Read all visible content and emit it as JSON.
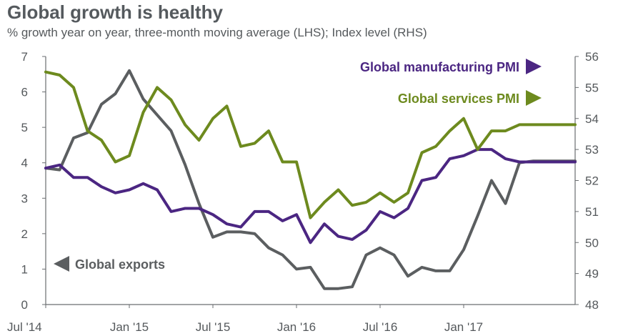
{
  "header": {
    "title": "Global growth is healthy",
    "subtitle": "% growth year on year, three-month moving average (LHS); Index level (RHS)"
  },
  "chart_data": {
    "type": "line",
    "title": "Global growth is healthy",
    "subtitle": "% growth year on year, three-month moving average (LHS); Index level (RHS)",
    "x_tick_labels": [
      "Jul '14",
      "Jan '15",
      "Jul '15",
      "Jan '16",
      "Jul '16",
      "Jan '17"
    ],
    "x_start": "2014-07",
    "x_end": "2017-09",
    "y_left": {
      "min": 0,
      "max": 7,
      "ticks": [
        0,
        1,
        2,
        3,
        4,
        5,
        6,
        7
      ]
    },
    "y_right": {
      "min": 48,
      "max": 56,
      "ticks": [
        48,
        49,
        50,
        51,
        52,
        53,
        54,
        55,
        56
      ]
    },
    "grid": false,
    "series": [
      {
        "name": "Global exports",
        "axis": "left",
        "color": "#5b5e60",
        "x": [
          "2014-07",
          "2014-08",
          "2014-09",
          "2014-10",
          "2014-11",
          "2014-12",
          "2015-01",
          "2015-02",
          "2015-03",
          "2015-04",
          "2015-05",
          "2015-06",
          "2015-07",
          "2015-08",
          "2015-09",
          "2015-10",
          "2015-11",
          "2015-12",
          "2016-01",
          "2016-02",
          "2016-03",
          "2016-04",
          "2016-05",
          "2016-06",
          "2016-07",
          "2016-08",
          "2016-09",
          "2016-10",
          "2016-11",
          "2016-12",
          "2017-01",
          "2017-02",
          "2017-03",
          "2017-04",
          "2017-05",
          "2017-06",
          "2017-07",
          "2017-08",
          "2017-09"
        ],
        "values": [
          3.85,
          3.8,
          4.7,
          4.85,
          5.65,
          5.95,
          6.6,
          5.8,
          5.35,
          4.9,
          3.95,
          2.85,
          1.9,
          2.05,
          2.05,
          2.0,
          1.6,
          1.4,
          1.0,
          1.05,
          0.45,
          0.45,
          0.5,
          1.4,
          1.6,
          1.4,
          0.8,
          1.05,
          0.95,
          0.95,
          1.55,
          2.5,
          3.5,
          2.85,
          4.0,
          4.05,
          4.05,
          4.05,
          4.05
        ]
      },
      {
        "name": "Global manufacturing PMI",
        "axis": "right",
        "color": "#4b2682",
        "x": [
          "2014-07",
          "2014-08",
          "2014-09",
          "2014-10",
          "2014-11",
          "2014-12",
          "2015-01",
          "2015-02",
          "2015-03",
          "2015-04",
          "2015-05",
          "2015-06",
          "2015-07",
          "2015-08",
          "2015-09",
          "2015-10",
          "2015-11",
          "2015-12",
          "2016-01",
          "2016-02",
          "2016-03",
          "2016-04",
          "2016-05",
          "2016-06",
          "2016-07",
          "2016-08",
          "2016-09",
          "2016-10",
          "2016-11",
          "2016-12",
          "2017-01",
          "2017-02",
          "2017-03",
          "2017-04",
          "2017-05",
          "2017-06",
          "2017-07",
          "2017-08",
          "2017-09"
        ],
        "values": [
          52.4,
          52.5,
          52.1,
          52.1,
          51.8,
          51.6,
          51.7,
          51.9,
          51.7,
          51.0,
          51.1,
          51.1,
          50.9,
          50.6,
          50.5,
          51.0,
          51.0,
          50.7,
          50.9,
          50.0,
          50.6,
          50.2,
          50.1,
          50.4,
          51.0,
          50.8,
          51.1,
          52.0,
          52.1,
          52.7,
          52.8,
          53.0,
          53.0,
          52.7,
          52.6,
          52.6,
          52.6,
          52.6,
          52.6
        ]
      },
      {
        "name": "Global services PMI",
        "axis": "right",
        "color": "#6d8a1e",
        "x": [
          "2014-07",
          "2014-08",
          "2014-09",
          "2014-10",
          "2014-11",
          "2014-12",
          "2015-01",
          "2015-02",
          "2015-03",
          "2015-04",
          "2015-05",
          "2015-06",
          "2015-07",
          "2015-08",
          "2015-09",
          "2015-10",
          "2015-11",
          "2015-12",
          "2016-01",
          "2016-02",
          "2016-03",
          "2016-04",
          "2016-05",
          "2016-06",
          "2016-07",
          "2016-08",
          "2016-09",
          "2016-10",
          "2016-11",
          "2016-12",
          "2017-01",
          "2017-02",
          "2017-03",
          "2017-04",
          "2017-05",
          "2017-06",
          "2017-07",
          "2017-08",
          "2017-09"
        ],
        "values": [
          55.5,
          55.4,
          55.0,
          53.6,
          53.3,
          52.6,
          52.8,
          54.2,
          55.0,
          54.6,
          53.8,
          53.3,
          54.0,
          54.4,
          53.1,
          53.2,
          53.6,
          52.6,
          52.6,
          50.8,
          51.3,
          51.7,
          51.2,
          51.3,
          51.6,
          51.3,
          51.6,
          52.9,
          53.1,
          53.6,
          54.0,
          53.0,
          53.6,
          53.6,
          53.8,
          53.8,
          53.8,
          53.8,
          53.8
        ]
      }
    ],
    "annotations": [
      {
        "text": "Global manufacturing PMI",
        "series": "Global manufacturing PMI",
        "marker": "triangle-right",
        "color": "#4b2682"
      },
      {
        "text": "Global services PMI",
        "series": "Global services PMI",
        "marker": "triangle-right",
        "color": "#6d8a1e"
      },
      {
        "text": "Global exports",
        "series": "Global exports",
        "marker": "triangle-left",
        "color": "#5b5e60"
      }
    ]
  }
}
